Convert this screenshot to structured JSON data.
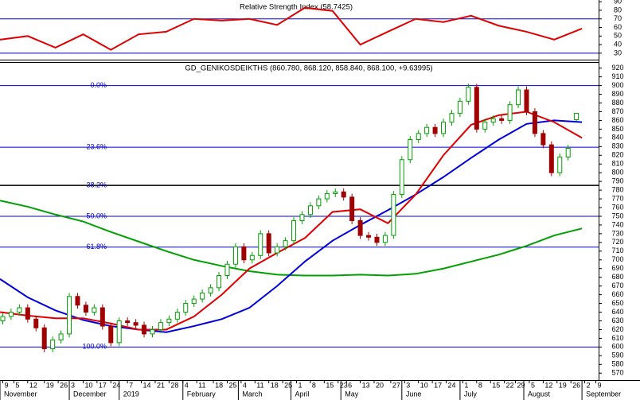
{
  "chart_data": [
    {
      "type": "line",
      "title": "Relative Strength Index (58.7425)",
      "x": [
        0,
        10,
        20,
        30,
        40,
        50,
        60,
        70,
        80,
        90,
        100,
        110,
        120,
        130,
        140,
        150,
        160,
        170,
        180,
        190,
        200,
        210
      ],
      "values": [
        45.8,
        50,
        36.5,
        52,
        34,
        52,
        55,
        70,
        68,
        70,
        63,
        83,
        79.3,
        40,
        55.1,
        70,
        66.3,
        73.7,
        62,
        55,
        45.8,
        58.7
      ],
      "color": "#e00000",
      "xlim": [
        0,
        216
      ],
      "ylim": [
        22.5,
        92
      ],
      "yticks": [
        30,
        40,
        50,
        60,
        70,
        80,
        90
      ],
      "reference_lines": [
        70,
        30
      ],
      "reference_color": "#0000cc"
    },
    {
      "type": "candlestick",
      "title": "GD_GENIKOSDEIKTHS (860.780, 868.120, 858.840, 868.100, +9.63995)",
      "x": [
        1,
        4,
        7,
        10,
        13,
        16,
        19,
        22,
        25,
        28,
        31,
        34,
        37,
        40,
        43,
        46,
        49,
        52,
        55,
        58,
        61,
        64,
        67,
        70,
        73,
        76,
        79,
        82,
        85,
        88,
        91,
        94,
        97,
        100,
        103,
        106,
        109,
        112,
        115,
        118,
        121,
        124,
        127,
        130,
        133,
        136,
        139,
        142,
        145,
        148,
        151,
        154,
        157,
        160,
        163,
        166,
        169,
        172,
        175,
        178,
        181,
        184,
        187,
        190,
        193,
        196,
        199,
        202,
        205,
        208
      ],
      "open": [
        630,
        635,
        640,
        645,
        632,
        622,
        598,
        608,
        615,
        658,
        648,
        640,
        645,
        624,
        605,
        630,
        628,
        625,
        615,
        620,
        628,
        632,
        640,
        650,
        655,
        662,
        668,
        682,
        695,
        715,
        700,
        705,
        730,
        708,
        715,
        722,
        745,
        752,
        762,
        770,
        776,
        778,
        772,
        745,
        728,
        726,
        720,
        728,
        775,
        815,
        838,
        845,
        852,
        845,
        858,
        868,
        882,
        898,
        850,
        858,
        862,
        860,
        878,
        895,
        870,
        845,
        832,
        800,
        818,
        860.78
      ],
      "high": [
        639,
        644,
        649,
        649,
        636,
        626,
        612,
        619,
        662,
        662,
        652,
        649,
        649,
        628,
        634,
        634,
        632,
        629,
        624,
        632,
        636,
        644,
        654,
        659,
        666,
        672,
        686,
        699,
        719,
        719,
        709,
        734,
        734,
        719,
        726,
        749,
        756,
        766,
        774,
        780,
        782,
        782,
        776,
        749,
        732,
        730,
        732,
        779,
        819,
        842,
        849,
        856,
        856,
        862,
        872,
        886,
        902,
        902,
        862,
        866,
        866,
        882,
        899,
        899,
        874,
        849,
        836,
        822,
        832,
        868.12
      ],
      "low": [
        626,
        631,
        636,
        628,
        618,
        594,
        594,
        604,
        611,
        644,
        636,
        636,
        620,
        601,
        601,
        624,
        621,
        611,
        611,
        616,
        624,
        628,
        636,
        646,
        651,
        658,
        664,
        678,
        691,
        696,
        696,
        701,
        704,
        704,
        711,
        718,
        741,
        748,
        758,
        766,
        772,
        768,
        741,
        724,
        722,
        716,
        716,
        724,
        771,
        811,
        834,
        841,
        841,
        841,
        854,
        864,
        878,
        846,
        846,
        854,
        856,
        856,
        874,
        866,
        841,
        828,
        796,
        796,
        814,
        858.84
      ],
      "close": [
        635,
        640,
        645,
        632,
        622,
        598,
        608,
        615,
        658,
        648,
        640,
        645,
        624,
        605,
        630,
        628,
        625,
        615,
        620,
        628,
        632,
        640,
        650,
        655,
        662,
        668,
        682,
        695,
        715,
        700,
        705,
        730,
        708,
        715,
        722,
        745,
        752,
        762,
        770,
        776,
        778,
        772,
        745,
        728,
        726,
        720,
        728,
        775,
        815,
        838,
        845,
        852,
        845,
        858,
        868,
        882,
        898,
        850,
        858,
        862,
        860,
        878,
        895,
        870,
        845,
        832,
        800,
        818,
        828,
        868.1
      ],
      "up_color": "#00a000",
      "down_color": "#a00000",
      "lines": [
        {
          "color": "#00a000",
          "x": [
            0,
            10,
            20,
            30,
            40,
            50,
            60,
            70,
            80,
            90,
            100,
            110,
            120,
            130,
            140,
            150,
            160,
            170,
            180,
            190,
            200,
            210
          ],
          "values": [
            768,
            761,
            752,
            744,
            732,
            721,
            710,
            700,
            693,
            687,
            683,
            682,
            682,
            683,
            682,
            684,
            690,
            698,
            706,
            716,
            728,
            736
          ]
        },
        {
          "color": "#0000dd",
          "x": [
            0,
            10,
            20,
            30,
            40,
            50,
            60,
            70,
            80,
            90,
            100,
            110,
            120,
            130,
            140,
            150,
            160,
            170,
            180,
            190,
            200,
            210
          ],
          "values": [
            678,
            657,
            642,
            631,
            624,
            620,
            617,
            624,
            632,
            645,
            670,
            698,
            722,
            740,
            757,
            775,
            795,
            817,
            838,
            856,
            860,
            858
          ]
        },
        {
          "color": "#e00000",
          "x": [
            0,
            10,
            20,
            30,
            40,
            50,
            60,
            70,
            80,
            90,
            100,
            110,
            120,
            130,
            140,
            150,
            160,
            170,
            180,
            190,
            200,
            210
          ],
          "values": [
            640,
            636,
            633,
            633,
            627,
            620,
            620,
            635,
            660,
            690,
            708,
            725,
            755,
            758,
            742,
            775,
            820,
            855,
            866,
            870,
            858,
            840
          ]
        }
      ],
      "xlim": [
        0,
        216
      ],
      "ylim": [
        562,
        927
      ],
      "yticks": [
        570,
        580,
        590,
        600,
        610,
        620,
        630,
        640,
        650,
        660,
        670,
        680,
        690,
        700,
        710,
        720,
        730,
        740,
        750,
        760,
        770,
        780,
        790,
        800,
        810,
        820,
        830,
        840,
        850,
        860,
        870,
        880,
        890,
        900,
        910,
        920
      ],
      "xticks": [
        {
          "value": 1,
          "label": "9"
        },
        {
          "value": 5,
          "label": "5"
        },
        {
          "value": 10,
          "label": "12"
        },
        {
          "value": 16,
          "label": "19"
        },
        {
          "value": 21,
          "label": "26"
        },
        {
          "value": 25,
          "label": "3"
        },
        {
          "value": 30,
          "label": "10"
        },
        {
          "value": 35,
          "label": "17"
        },
        {
          "value": 40,
          "label": "24"
        },
        {
          "value": 46,
          "label": "7"
        },
        {
          "value": 51,
          "label": "14"
        },
        {
          "value": 56,
          "label": "21"
        },
        {
          "value": 61,
          "label": "28"
        },
        {
          "value": 66,
          "label": "4"
        },
        {
          "value": 71,
          "label": "11"
        },
        {
          "value": 77,
          "label": "18"
        },
        {
          "value": 82,
          "label": "25"
        },
        {
          "value": 87,
          "label": "4"
        },
        {
          "value": 92,
          "label": "11"
        },
        {
          "value": 97,
          "label": "18"
        },
        {
          "value": 102,
          "label": "25"
        },
        {
          "value": 107,
          "label": "1"
        },
        {
          "value": 112,
          "label": "8"
        },
        {
          "value": 117,
          "label": "15"
        },
        {
          "value": 122,
          "label": "23"
        },
        {
          "value": 125,
          "label": "6"
        },
        {
          "value": 130,
          "label": "13"
        },
        {
          "value": 135,
          "label": "20"
        },
        {
          "value": 141,
          "label": "27"
        },
        {
          "value": 146,
          "label": "3"
        },
        {
          "value": 151,
          "label": "10"
        },
        {
          "value": 156,
          "label": "17"
        },
        {
          "value": 161,
          "label": "24"
        },
        {
          "value": 167,
          "label": "1"
        },
        {
          "value": 172,
          "label": "8"
        },
        {
          "value": 177,
          "label": "15"
        },
        {
          "value": 182,
          "label": "22"
        },
        {
          "value": 186,
          "label": "29"
        },
        {
          "value": 191,
          "label": "5"
        },
        {
          "value": 196,
          "label": "12"
        },
        {
          "value": 201,
          "label": "19"
        },
        {
          "value": 206,
          "label": "26"
        },
        {
          "value": 211,
          "label": "2"
        },
        {
          "value": 215,
          "label": "9"
        }
      ],
      "month_ticks": [
        {
          "value": 0,
          "label": "November"
        },
        {
          "value": 25,
          "label": "December"
        },
        {
          "value": 43,
          "label": "2019"
        },
        {
          "value": 66,
          "label": "February"
        },
        {
          "value": 86,
          "label": "March"
        },
        {
          "value": 105,
          "label": "April"
        },
        {
          "value": 123,
          "label": "May"
        },
        {
          "value": 145,
          "label": "June"
        },
        {
          "value": 166,
          "label": "July"
        },
        {
          "value": 189,
          "label": "August"
        },
        {
          "value": 210,
          "label": "September"
        }
      ],
      "fib_levels": [
        {
          "value": 900,
          "label": "0.0%",
          "color": "#0000cc"
        },
        {
          "value": 829.2,
          "label": "23.6%",
          "color": "#0000cc"
        },
        {
          "value": 785.4,
          "label": "38.2%",
          "color": "#000000"
        },
        {
          "value": 750,
          "label": "50.0%",
          "color": "#0000cc"
        },
        {
          "value": 714.6,
          "label": "61.8%",
          "color": "#0000cc"
        },
        {
          "value": 600,
          "label": "100.0%",
          "color": "#0000cc"
        }
      ]
    }
  ]
}
